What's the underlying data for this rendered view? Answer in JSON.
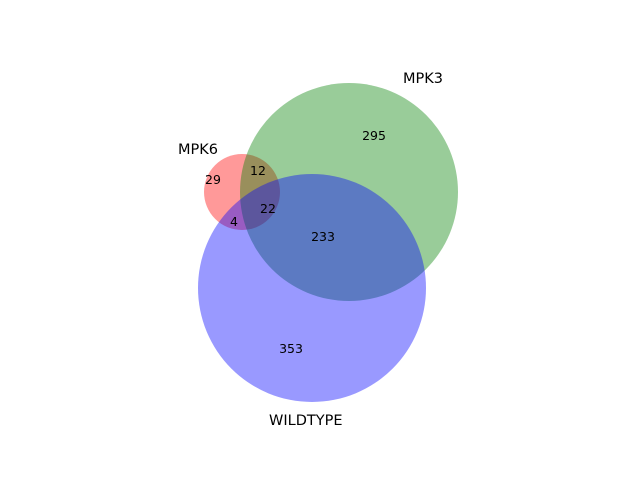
{
  "chart_data": {
    "type": "venn",
    "sets": [
      {
        "id": "mpk6",
        "name": "MPK6",
        "color": "#ff0000",
        "alpha": 0.4
      },
      {
        "id": "mpk3",
        "name": "MPK3",
        "color": "#008000",
        "alpha": 0.4
      },
      {
        "id": "wildtype",
        "name": "WILDTYPE",
        "color": "#0000ff",
        "alpha": 0.4
      }
    ],
    "regions": [
      {
        "sets": [
          "mpk6"
        ],
        "value": 29
      },
      {
        "sets": [
          "mpk3"
        ],
        "value": 295
      },
      {
        "sets": [
          "wildtype"
        ],
        "value": 353
      },
      {
        "sets": [
          "mpk6",
          "mpk3"
        ],
        "value": 12
      },
      {
        "sets": [
          "mpk6",
          "wildtype"
        ],
        "value": 4
      },
      {
        "sets": [
          "mpk3",
          "wildtype"
        ],
        "value": 233
      },
      {
        "sets": [
          "mpk6",
          "mpk3",
          "wildtype"
        ],
        "value": 22
      }
    ]
  }
}
